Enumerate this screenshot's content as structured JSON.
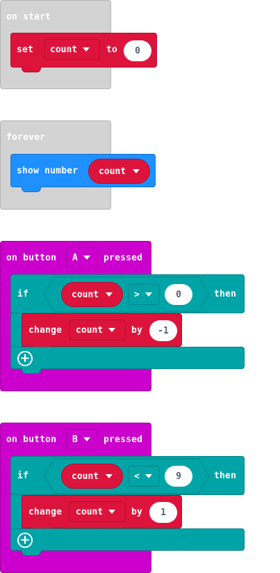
{
  "colors": {
    "events_grey": "#d3d3d3",
    "input_magenta": "#cc00cc",
    "variables_red": "#dc143c",
    "basic_blue": "#1e90ff",
    "logic_teal": "#00a4a6"
  },
  "on_start": {
    "label": "on start",
    "set": {
      "keyword": "set",
      "variable": "count",
      "to_label": "to",
      "value": "0"
    }
  },
  "forever": {
    "label": "forever",
    "show_number": {
      "keyword": "show number",
      "variable": "count"
    }
  },
  "button_a": {
    "on_label": "on button",
    "button": "A",
    "pressed_label": "pressed",
    "if_label": "if",
    "condition": {
      "variable": "count",
      "operator": ">",
      "value": "0"
    },
    "then_label": "then",
    "change": {
      "keyword": "change",
      "variable": "count",
      "by_label": "by",
      "value": "-1"
    },
    "add_icon": "plus-circle-icon"
  },
  "button_b": {
    "on_label": "on button",
    "button": "B",
    "pressed_label": "pressed",
    "if_label": "if",
    "condition": {
      "variable": "count",
      "operator": "<",
      "value": "9"
    },
    "then_label": "then",
    "change": {
      "keyword": "change",
      "variable": "count",
      "by_label": "by",
      "value": "1"
    },
    "add_icon": "plus-circle-icon"
  }
}
